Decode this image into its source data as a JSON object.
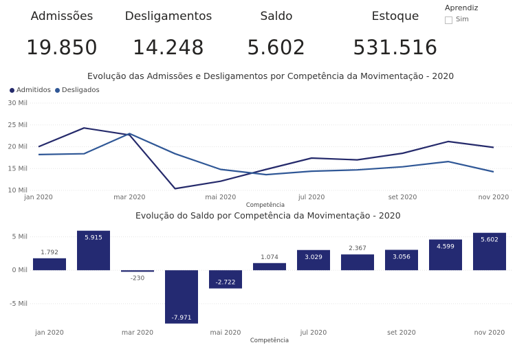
{
  "kpis": [
    {
      "label": "Admissões",
      "value": "19.850"
    },
    {
      "label": "Desligamentos",
      "value": "14.248"
    },
    {
      "label": "Saldo",
      "value": "5.602"
    },
    {
      "label": "Estoque",
      "value": "531.516"
    }
  ],
  "filter": {
    "title": "Aprendiz",
    "option": "Sim",
    "checked": false
  },
  "chart_data": [
    {
      "type": "line",
      "title": "Evolução das Admissões e Desligamentos por Competência da Movimentação - 2020",
      "xlabel": "Competência",
      "ylabel": "",
      "categories": [
        "jan 2020",
        "fev 2020",
        "mar 2020",
        "abr 2020",
        "mai 2020",
        "jun 2020",
        "jul 2020",
        "ago 2020",
        "set 2020",
        "out 2020",
        "nov 2020"
      ],
      "visible_tick_labels": [
        "jan 2020",
        "mar 2020",
        "mai 2020",
        "jul 2020",
        "set 2020",
        "nov 2020"
      ],
      "yticks": [
        {
          "value": 10000,
          "label": "10 Mil"
        },
        {
          "value": 15000,
          "label": "15 Mil"
        },
        {
          "value": 20000,
          "label": "20 Mil"
        },
        {
          "value": 25000,
          "label": "25 Mil"
        },
        {
          "value": 30000,
          "label": "30 Mil"
        }
      ],
      "ylim": [
        10000,
        30000
      ],
      "legend_position": "top-left",
      "series": [
        {
          "name": "Admitidos",
          "color": "#252a6b",
          "values": [
            20000,
            24300,
            22700,
            10400,
            12100,
            14800,
            17400,
            17000,
            18500,
            21200,
            19850
          ]
        },
        {
          "name": "Desligados",
          "color": "#2f5796",
          "values": [
            18200,
            18400,
            23000,
            18400,
            14800,
            13600,
            14400,
            14700,
            15400,
            16600,
            14248
          ]
        }
      ]
    },
    {
      "type": "bar",
      "title": "Evolução do Saldo por Competência da Movimentação - 2020",
      "xlabel": "Competência",
      "ylabel": "",
      "categories": [
        "jan 2020",
        "fev 2020",
        "mar 2020",
        "abr 2020",
        "mai 2020",
        "jun 2020",
        "jul 2020",
        "ago 2020",
        "set 2020",
        "out 2020",
        "nov 2020"
      ],
      "visible_tick_labels": [
        "jan 2020",
        "mar 2020",
        "mai 2020",
        "jul 2020",
        "set 2020",
        "nov 2020"
      ],
      "values": [
        1792,
        5915,
        -230,
        -7971,
        -2722,
        1074,
        3029,
        2367,
        3056,
        4599,
        5602
      ],
      "value_labels": [
        "1.792",
        "5.915",
        "-230",
        "-7.971",
        "-2.722",
        "1.074",
        "3.029",
        "2.367",
        "3.056",
        "4.599",
        "5.602"
      ],
      "yticks": [
        {
          "value": -5000,
          "label": "-5 Mil"
        },
        {
          "value": 0,
          "label": "0 Mil"
        },
        {
          "value": 5000,
          "label": "5 Mil"
        }
      ],
      "ylim": [
        -8200,
        6500
      ],
      "color": "#242a72"
    }
  ]
}
